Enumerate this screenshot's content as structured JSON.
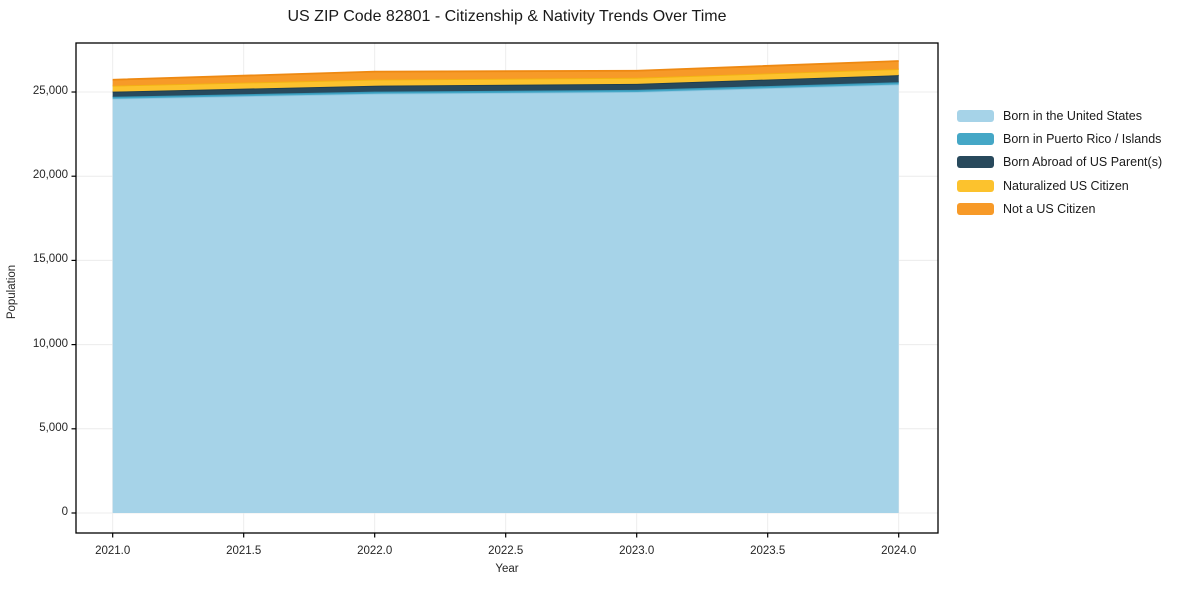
{
  "page": {
    "background": "#ffffff"
  },
  "chart_data": {
    "type": "area",
    "stacked": true,
    "title": "US ZIP Code 82801 - Citizenship & Nativity Trends Over Time",
    "xlabel": "Year",
    "ylabel": "Population",
    "x": [
      2021,
      2022,
      2023,
      2024
    ],
    "series": [
      {
        "name": "Born in the United States",
        "color": "#a6d3e8",
        "edge_color": "#8fc6e0",
        "values": [
          24600,
          24900,
          25000,
          25450
        ]
      },
      {
        "name": "Born in Puerto Rico / Islands",
        "color": "#45a7c6",
        "edge_color": "#3597b8",
        "values": [
          120,
          120,
          130,
          130
        ]
      },
      {
        "name": "Born Abroad of US Parent(s)",
        "color": "#28495c",
        "edge_color": "#1e3c4d",
        "values": [
          300,
          355,
          355,
          420
        ]
      },
      {
        "name": "Naturalized US Citizen",
        "color": "#fcc22d",
        "edge_color": "#f2b312",
        "values": [
          355,
          360,
          360,
          360
        ]
      },
      {
        "name": "Not a US Citizen",
        "color": "#f79a28",
        "edge_color": "#ee8912",
        "values": [
          355,
          475,
          420,
          480
        ]
      }
    ],
    "x_ticks": [
      2021.0,
      2021.5,
      2022.0,
      2022.5,
      2023.0,
      2023.5,
      2024.0
    ],
    "x_tick_labels": [
      "2021.0",
      "2021.5",
      "2022.0",
      "2022.5",
      "2023.0",
      "2023.5",
      "2024.0"
    ],
    "y_ticks": [
      0,
      5000,
      10000,
      15000,
      20000,
      25000
    ],
    "y_tick_labels": [
      "0",
      "5,000",
      "10,000",
      "15,000",
      "20,000",
      "25,000"
    ],
    "xlim": [
      2020.86,
      2024.15
    ],
    "ylim": [
      -1188,
      27911
    ],
    "grid": true,
    "grid_color": "#ececec",
    "axis_color": "#000000",
    "tick_color": "#262626",
    "text_color": "#1a1a1a",
    "legend_position": "right-outside"
  }
}
